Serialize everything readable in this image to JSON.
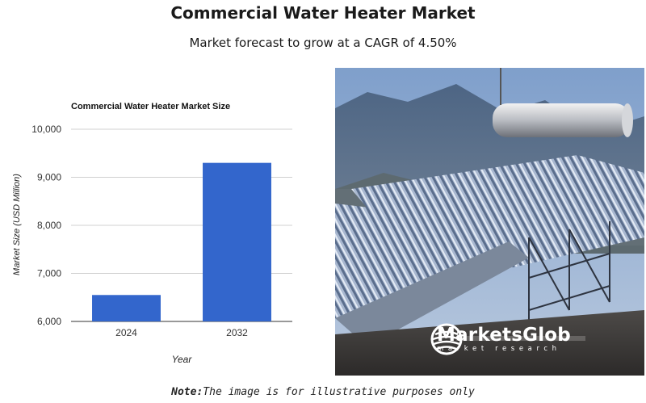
{
  "header": {
    "title": "Commercial Water Heater Market",
    "subtitle": "Market forecast to grow at a CAGR of 4.50%"
  },
  "chart_data": {
    "type": "bar",
    "title": "Commercial Water Heater Market Size",
    "xlabel": "Year",
    "ylabel": "Market Size (USD Million)",
    "categories": [
      "2024",
      "2032"
    ],
    "values": [
      6550,
      9300
    ],
    "ylim": [
      6000,
      10000
    ],
    "yticks": [
      "6,000",
      "7,000",
      "8,000",
      "9,000",
      "10,000"
    ],
    "grid": true,
    "bar_color": "#3366cc"
  },
  "photo": {
    "subject": "solar-water-heater-photo",
    "brand_name": "MarketsGlob",
    "brand_tagline": "market research"
  },
  "footer": {
    "note_label": "Note:",
    "note_text": "The image is for illustrative purposes only"
  }
}
